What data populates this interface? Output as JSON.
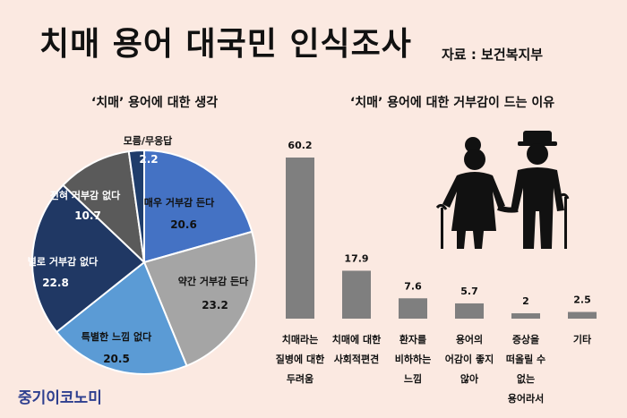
{
  "header": {
    "title": "치매 용어 대국민 인식조사",
    "source": "자료 : 보건복지부"
  },
  "brand": "중기이코노미",
  "chart_data": [
    {
      "type": "pie",
      "title": "‘치매’ 용어에 대한 생각",
      "slices": [
        {
          "label": "매우 거부감 든다",
          "value": 20.6,
          "color": "#4472c4"
        },
        {
          "label": "약간 거부감 든다",
          "value": 23.2,
          "color": "#a5a5a5"
        },
        {
          "label": "특별한 느낌 없다",
          "value": 20.5,
          "color": "#5b9bd5"
        },
        {
          "label": "별로 거부감 없다",
          "value": 22.8,
          "color": "#203864"
        },
        {
          "label": "전혀 거부감 없다",
          "value": 10.7,
          "color": "#5a5a5a"
        },
        {
          "label": "모름/무응답",
          "value": 2.2,
          "color": "#1f3d6b"
        }
      ]
    },
    {
      "type": "bar",
      "title": "‘치매’ 용어에 대한 거부감이 드는 이유",
      "categories": [
        [
          "치매라는",
          "질병에 대한",
          "두려움"
        ],
        [
          "치매에 대한",
          "사회적편견"
        ],
        [
          "환자를",
          "비하하는",
          "느낌"
        ],
        [
          "용어의",
          "어감이 좋지",
          "않아"
        ],
        [
          "증상을",
          "떠올릴 수",
          "없는",
          "용어라서"
        ],
        [
          "기타"
        ]
      ],
      "values": [
        60.2,
        17.9,
        7.6,
        5.7,
        2,
        2.5
      ],
      "value_labels": [
        "60.2",
        "17.9",
        "7.6",
        "5.7",
        "2",
        "2.5"
      ],
      "bar_color": "#7f7f7f"
    }
  ]
}
